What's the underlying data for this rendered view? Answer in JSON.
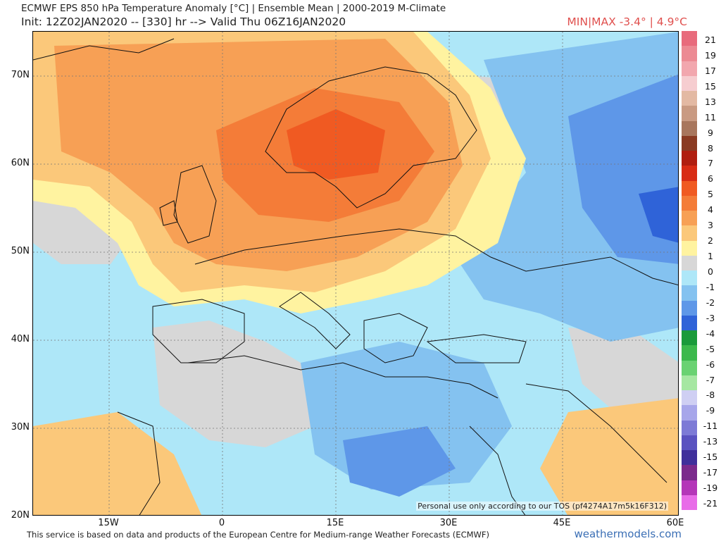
{
  "header": {
    "title_line1": "ECMWF EPS 850 hPa Temperature Anomaly [°C] | Ensemble Mean | 2000-2019 M-Climate",
    "title_line2": "Init: 12Z02JAN2020 -- [330] hr --> Valid Thu 06Z16JAN2020",
    "minmax": "MIN|MAX -3.4° | 4.9°C"
  },
  "axes": {
    "lat_labels": [
      "70N",
      "60N",
      "50N",
      "40N",
      "30N",
      "20N"
    ],
    "lon_labels": [
      "15W",
      "0",
      "15E",
      "30E",
      "45E",
      "60E"
    ]
  },
  "colorbar": {
    "labels": [
      "21",
      "19",
      "17",
      "15",
      "13",
      "11",
      "9",
      "8",
      "7",
      "6",
      "5",
      "4",
      "3",
      "2",
      "1",
      "0",
      "-1",
      "-2",
      "-3",
      "-4",
      "-5",
      "-6",
      "-7",
      "-8",
      "-9",
      "-11",
      "-13",
      "-15",
      "-17",
      "-19",
      "-21"
    ],
    "colors": [
      "#e86b7c",
      "#ec8a93",
      "#f2a7ae",
      "#f6cdd0",
      "#e3b9a3",
      "#c99a82",
      "#a8765d",
      "#8a3a22",
      "#b01e10",
      "#d82c15",
      "#f05a22",
      "#f47c38",
      "#f7a055",
      "#fbc87a",
      "#fff3a0",
      "#d7d7d7",
      "#aee7f8",
      "#84c2f0",
      "#5e97e8",
      "#2f63d8",
      "#1a9a3a",
      "#3cb94c",
      "#6ad272",
      "#a6e7a2",
      "#cfcff3",
      "#a7a6ea",
      "#7d7ad6",
      "#5a52c0",
      "#3f2f9b",
      "#7b2a8c",
      "#b436b8",
      "#e86ce8"
    ]
  },
  "watermark": "Personal use only according to our TOS (pf4274A17m5k16F312)",
  "footer": "This service is based on data and products of the European Centre for Medium-range Weather Forecasts (ECMWF)",
  "brand": "weathermodels.com"
}
